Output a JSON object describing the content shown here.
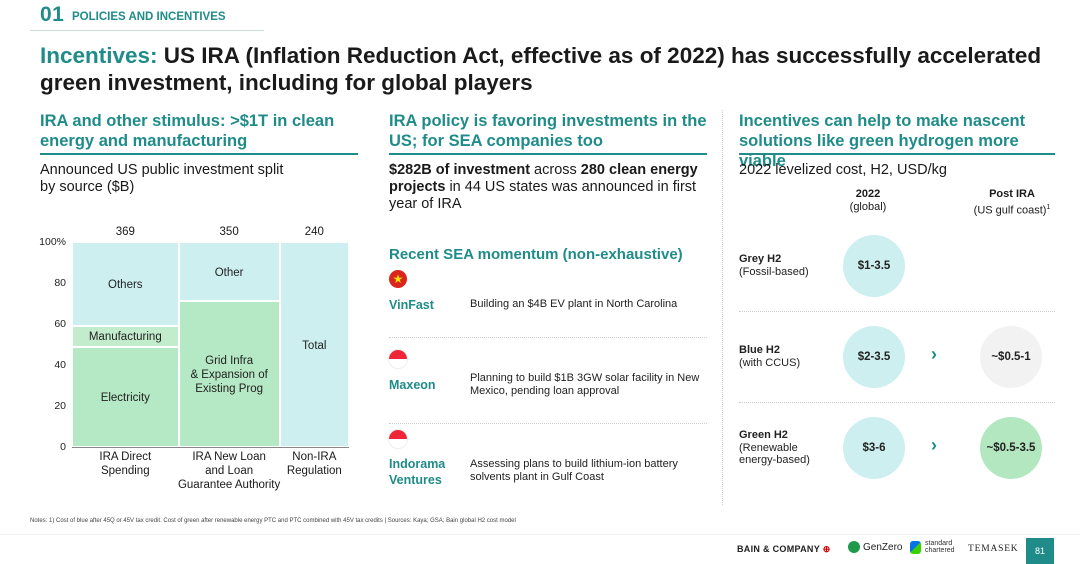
{
  "header": {
    "section_number": "01",
    "section_name": "POLICIES AND INCENTIVES"
  },
  "title": {
    "lead": "Incentives:",
    "rest": " US IRA (Inflation Reduction Act, effective as of 2022) has successfully accelerated green investment, including for global players"
  },
  "col1": {
    "title": "IRA and other stimulus: >$1T in clean energy and manufacturing",
    "subtitle": "Announced US public investment split by source ($B)"
  },
  "chart_data": {
    "type": "bar",
    "subtype": "marimekko",
    "y_axis_ticks": [
      "100%",
      "80",
      "60",
      "40",
      "20",
      "0"
    ],
    "ylim": [
      0,
      100
    ],
    "categories": [
      "IRA Direct Spending",
      "IRA New Loan and Loan Guarantee Authority",
      "Non-IRA Regulation"
    ],
    "category_labels": [
      [
        "IRA Direct",
        "Spending"
      ],
      [
        "IRA New Loan",
        "and Loan",
        "Guarantee Authority"
      ],
      [
        "Non-IRA",
        "Regulation"
      ]
    ],
    "totals": [
      369,
      350,
      240
    ],
    "total_labels": [
      "369",
      "350",
      "240"
    ],
    "segments": [
      [
        {
          "label": [
            "Electricity"
          ],
          "share": 49,
          "color": "#b5e8c4"
        },
        {
          "label": [
            "Manufacturing"
          ],
          "share": 10,
          "color": "#c3eccd"
        },
        {
          "label": [
            "Others"
          ],
          "share": 41,
          "color": "#cdeff0"
        }
      ],
      [
        {
          "label": [
            "Grid Infra",
            "& Expansion of",
            "Existing Prog"
          ],
          "share": 71,
          "color": "#b5e8c4"
        },
        {
          "label": [
            "Other"
          ],
          "share": 29,
          "color": "#cdeff0"
        }
      ],
      [
        {
          "label": [
            "Total"
          ],
          "share": 100,
          "color": "#cdeff0"
        }
      ]
    ]
  },
  "col2": {
    "title": "IRA policy is favoring investments in the US; for SEA companies too",
    "intro_b1": "$282B of investment",
    "intro_t1": " across ",
    "intro_b2": "280 clean energy projects",
    "intro_t2": " in 44 US states was announced in first year of IRA",
    "sea_title": "Recent SEA momentum (non-exhaustive)",
    "companies": [
      {
        "name": "VinFast",
        "desc": "Building an $4B EV plant in North Carolina",
        "flag": "vietnam-flag"
      },
      {
        "name": "Maxeon",
        "desc": "Planning to build $1B 3GW solar facility in New Mexico, pending loan approval",
        "flag": "singapore-flag"
      },
      {
        "name": "Indorama Ventures",
        "desc": "Assessing plans to build lithium-ion battery solvents plant in Gulf Coast",
        "flag": "singapore-flag"
      }
    ]
  },
  "col3": {
    "title": "Incentives can help to make nascent solutions like green hydrogen more viable",
    "subtitle": "2022 levelized cost, H2, USD/kg",
    "head1_line1": "2022",
    "head1_line2": "(global)",
    "head2_line1": "Post IRA",
    "head2_line2": "(US gulf coast)",
    "head2_sup": "1",
    "rows": [
      {
        "name": "Grey H2",
        "detail": "(Fossil-based)",
        "cost2022": "$1-3.5",
        "post_ira": ""
      },
      {
        "name": "Blue H2",
        "detail": "(with CCUS)",
        "cost2022": "$2-3.5",
        "post_ira": "~$0.5-1"
      },
      {
        "name": "Green H2",
        "detail": "(Renewable energy-based)",
        "cost2022": "$3-6",
        "post_ira": "~$0.5-3.5"
      }
    ],
    "arrow": "›"
  },
  "colors": {
    "accent": "#1f8c8a",
    "light_teal": "#cdeff0",
    "light_green": "#b5e8c4",
    "grey_circle": "#f2f2f2",
    "green_circle": "#b3e7bf"
  },
  "notes": "Notes: 1) Cost of blue after 45Q or 45V tax credit. Cost of green after renewable energy PTC and PTC combined with 45V tax credits | Sources: Kaya; GSA; Bain global H2 cost model",
  "footer": {
    "logo1": "BAIN & COMPANY",
    "logo2": "GenZero",
    "logo3_line1": "standard",
    "logo3_line2": "chartered",
    "logo4": "TEMASEK",
    "page": "81"
  }
}
